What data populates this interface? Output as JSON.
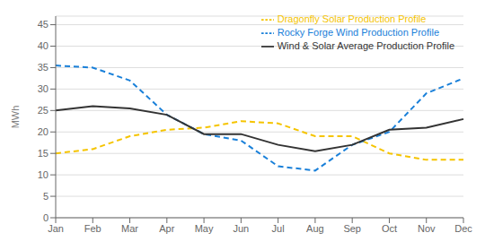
{
  "chart_data": {
    "type": "line",
    "categories": [
      "Jan",
      "Feb",
      "Mar",
      "Apr",
      "May",
      "Jun",
      "Jul",
      "Aug",
      "Sep",
      "Oct",
      "Nov",
      "Dec"
    ],
    "series": [
      {
        "name": "Dragonfly Solar Production Profile",
        "color": "#f5c400",
        "line_style": "dashed",
        "values": [
          15,
          16,
          19,
          20.5,
          21,
          22.5,
          22,
          19,
          19,
          15,
          13.5,
          13.5
        ]
      },
      {
        "name": "Rocky Forge Wind Production Profile",
        "color": "#1a80d9",
        "line_style": "dashed",
        "values": [
          35.5,
          35,
          32,
          24,
          19.5,
          18,
          12,
          11,
          17,
          20,
          29,
          32.5
        ]
      },
      {
        "name": "Wind & Solar Average Production Profile",
        "color": "#333333",
        "line_style": "solid",
        "values": [
          25,
          26,
          25.5,
          24,
          19.5,
          19.5,
          17,
          15.5,
          17,
          20.5,
          21,
          23
        ]
      }
    ],
    "ylabel": "MWh",
    "ylim": [
      0,
      47
    ],
    "yticks": [
      0,
      5,
      10,
      15,
      20,
      25,
      30,
      35,
      40,
      45
    ],
    "grid": true,
    "legend": "upper right"
  }
}
